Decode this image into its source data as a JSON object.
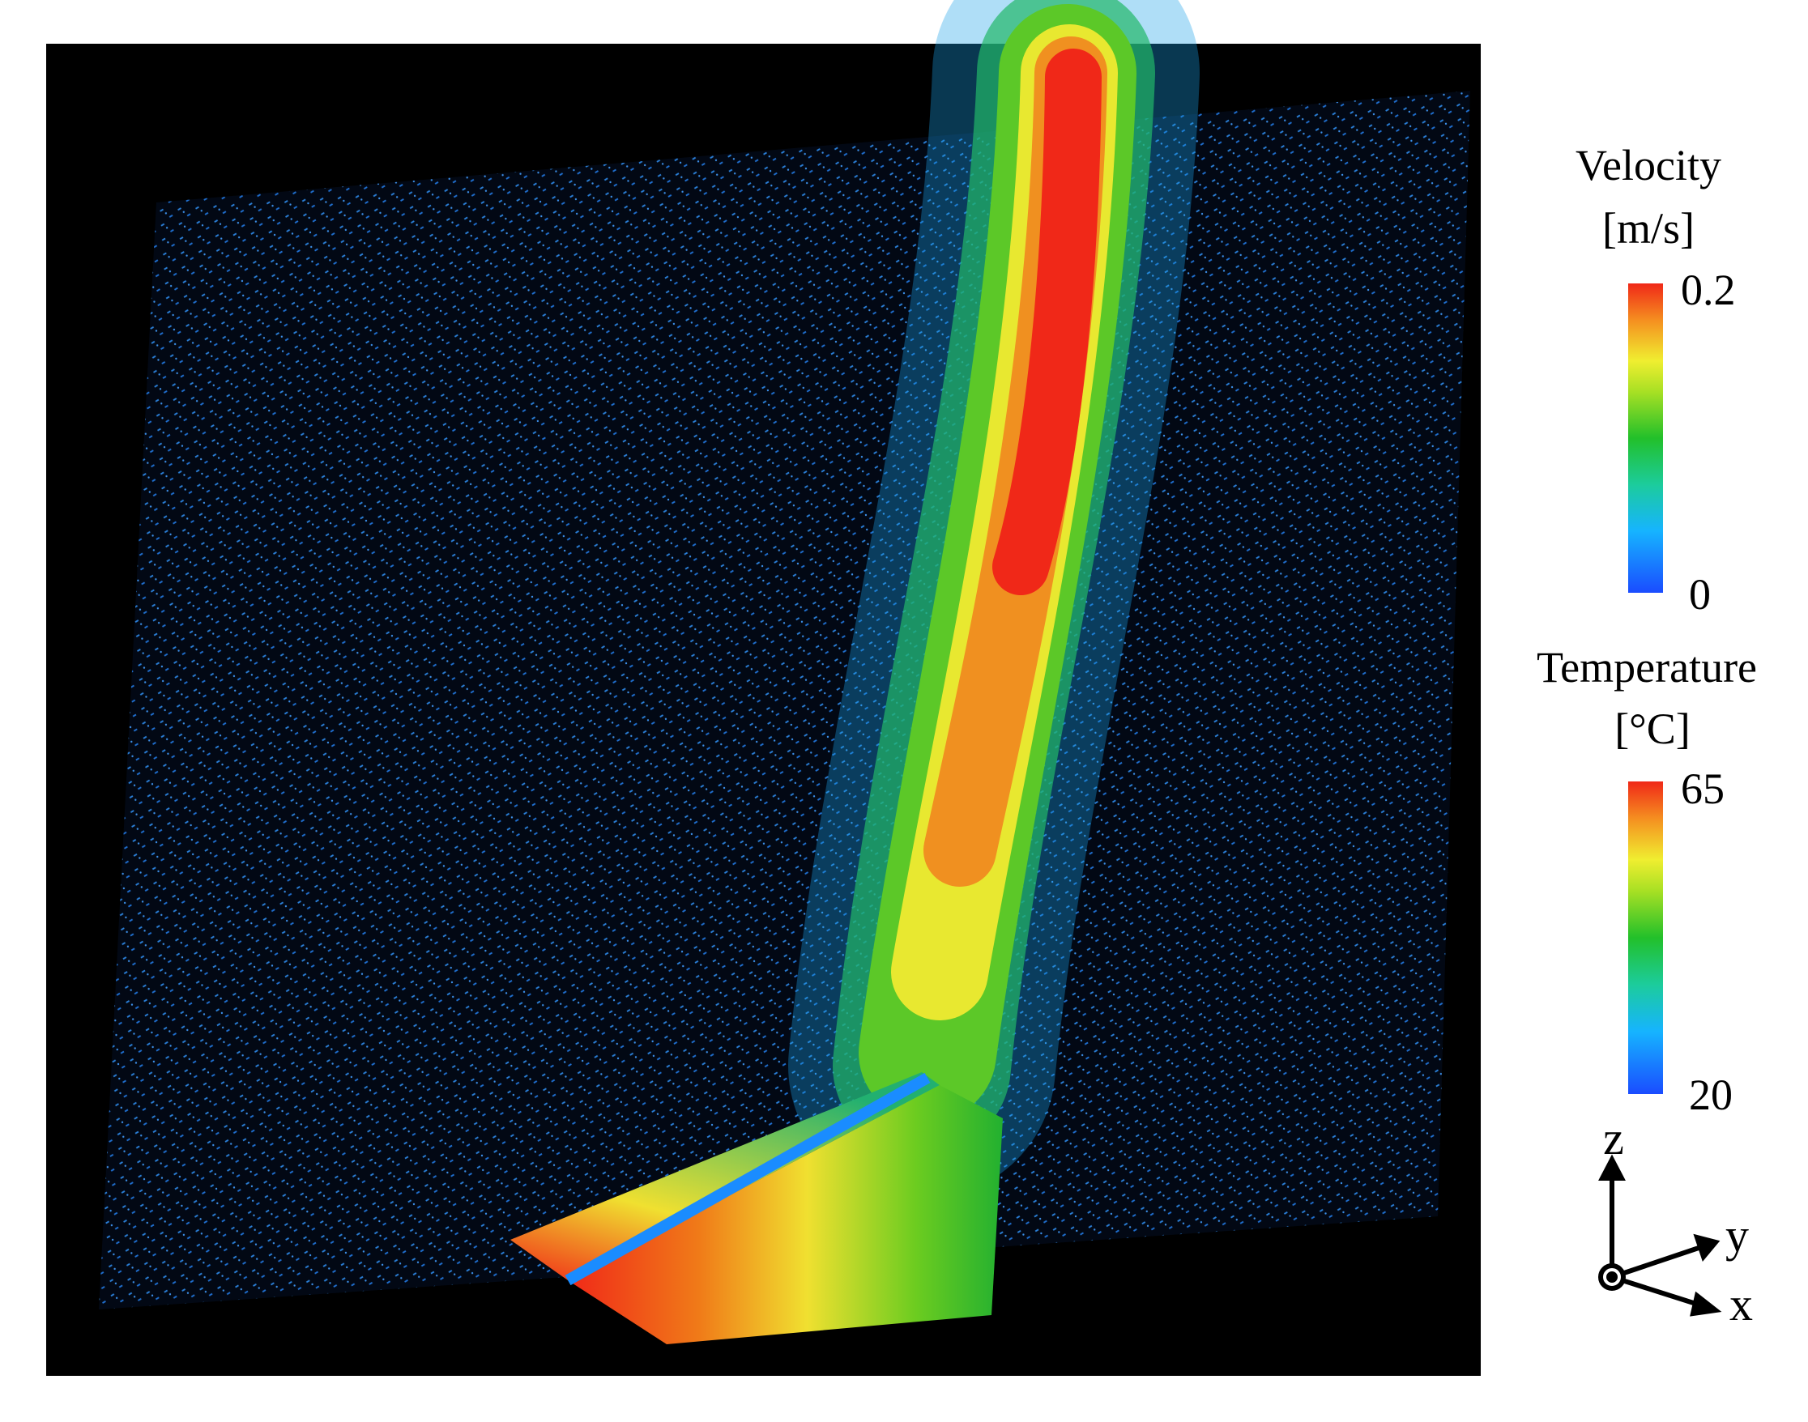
{
  "velocity_legend": {
    "title": "Velocity",
    "unit": "[m/s]",
    "max_label": "0.2",
    "min_label": "0"
  },
  "temperature_legend": {
    "title": "Temperature",
    "unit": "[°C]",
    "max_label": "65",
    "min_label": "20"
  },
  "axes": {
    "z": "z",
    "y": "y",
    "x": "x"
  }
}
